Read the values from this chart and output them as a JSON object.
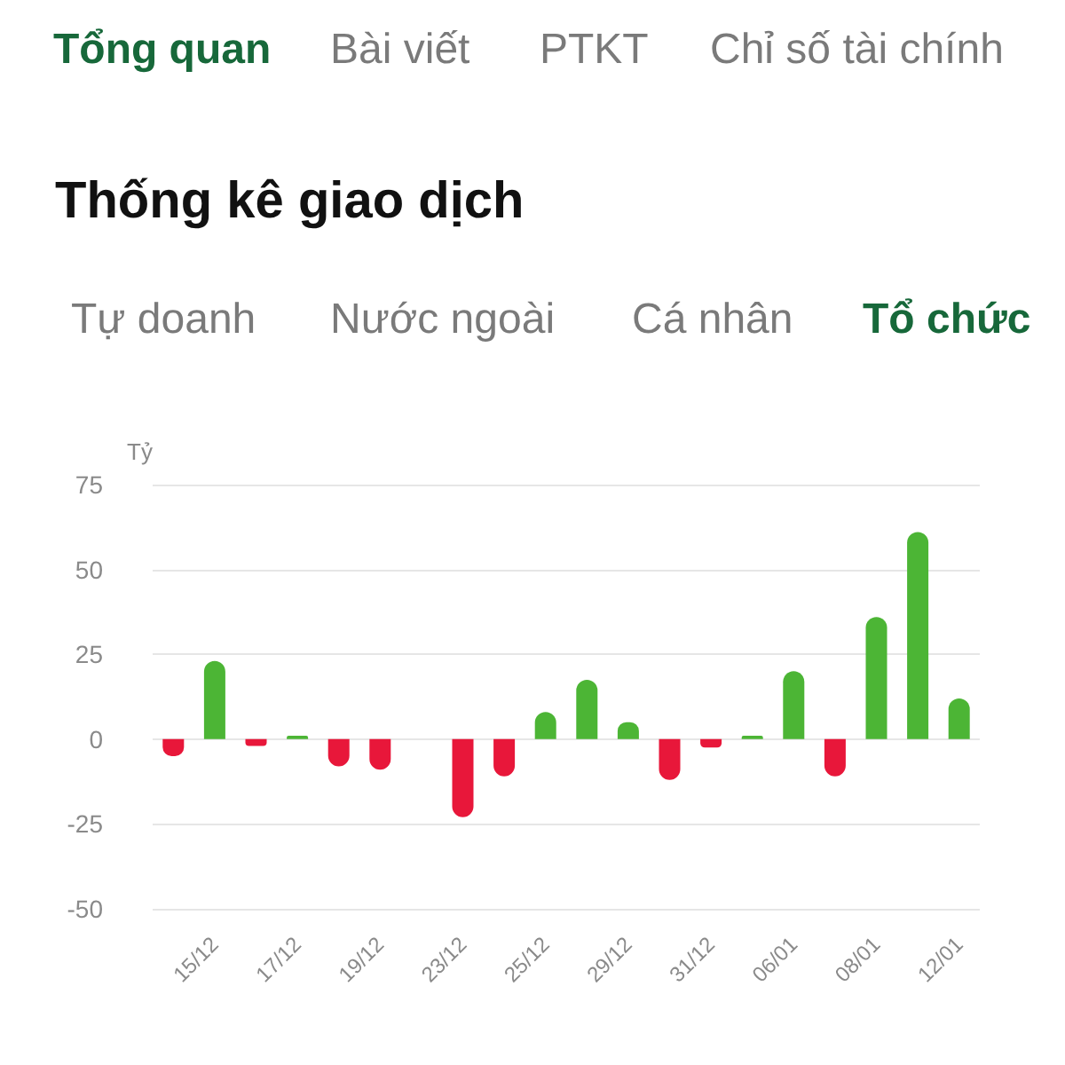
{
  "chart_data": {
    "type": "bar",
    "title": "Thống kê giao dịch",
    "ylabel": "Tỷ",
    "annotations": [
      "Tổng quan",
      "Bài viết",
      "PTKT",
      "Chỉ số tài chính",
      "Tự doanh",
      "Nước ngoài",
      "Cá nhân",
      "Tổ chức"
    ],
    "categories": [
      null,
      "15/12",
      null,
      "17/12",
      null,
      "19/12",
      null,
      "23/12",
      null,
      "25/12",
      null,
      "29/12",
      null,
      "31/12",
      null,
      "06/01",
      null,
      "08/01",
      null,
      "12/01"
    ],
    "values": [
      -5,
      23,
      -2,
      1,
      -8,
      -9,
      0,
      -23,
      -11,
      8,
      17.5,
      5,
      -12,
      -2.5,
      1,
      20,
      -11,
      36,
      61,
      12
    ],
    "colors": [
      "#e8173a",
      "#4cb535",
      "#e8173a",
      "#4cb535",
      "#e8173a",
      "#e8173a",
      "#e8173a",
      "#e8173a",
      "#e8173a",
      "#4cb535",
      "#4cb535",
      "#4cb535",
      "#e8173a",
      "#e8173a",
      "#4cb535",
      "#4cb535",
      "#e8173a",
      "#4cb535",
      "#4cb535",
      "#4cb535"
    ],
    "ylim": [
      -50,
      75
    ],
    "yticks": [
      -50,
      -25,
      0,
      25,
      50,
      75
    ],
    "grid": "y"
  }
}
